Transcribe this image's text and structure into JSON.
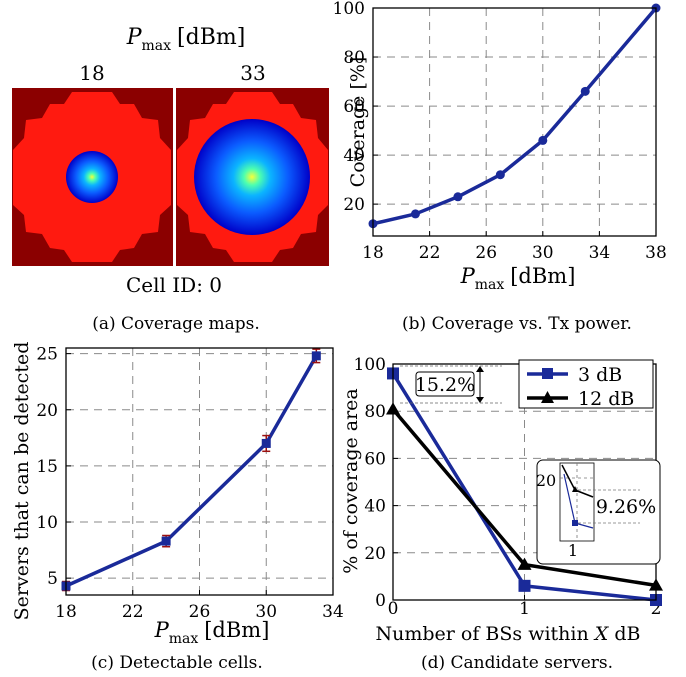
{
  "maps": {
    "header_prefix": "P",
    "header_sub": "max",
    "header_unit": "[dBm]",
    "labels": [
      "18",
      "33"
    ],
    "cell_label": "Cell ID: 0",
    "colors": {
      "background": "#8b0000",
      "cell": "#ff1a10",
      "coverage_outer": "#0000c8",
      "coverage_mid": "#0b72ff",
      "coverage_center": "#f8ff3a"
    },
    "coverage_radius_fraction": [
      0.195,
      0.455
    ]
  },
  "captions": {
    "a": "(a) Coverage maps.",
    "b": "(b) Coverage vs. Tx power.",
    "c": "(c) Detectable cells.",
    "d": "(d) Candidate servers."
  },
  "chart_data": [
    {
      "id": "b",
      "type": "line",
      "x": [
        18,
        21,
        24,
        27,
        30,
        33,
        38
      ],
      "series": [
        {
          "values": [
            12,
            16,
            23,
            32,
            46,
            66,
            100
          ],
          "color": "#1a2a99"
        }
      ],
      "xlabel_prefix": "P",
      "xlabel_sub": "max",
      "xlabel_unit": "[dBm]",
      "ylabel": "Coverage [%]",
      "xticks": [
        "18",
        "22",
        "26",
        "30",
        "34",
        "38"
      ],
      "yticks": [
        "20",
        "40",
        "60",
        "80",
        "100"
      ],
      "xlim": [
        18,
        38
      ],
      "ylim": [
        7,
        100
      ],
      "grid": true
    },
    {
      "id": "c",
      "type": "line",
      "x": [
        18,
        24,
        30,
        33
      ],
      "series": [
        {
          "values": [
            4.3,
            8.3,
            17.0,
            24.8
          ],
          "errors": [
            0.4,
            0.5,
            0.7,
            0.6
          ],
          "color": "#1a2a99",
          "error_color": "#9a1010"
        }
      ],
      "xlabel_prefix": "P",
      "xlabel_sub": "max",
      "xlabel_unit": "[dBm]",
      "ylabel": "Servers that can be detected",
      "xticks": [
        "18",
        "22",
        "26",
        "30",
        "34"
      ],
      "yticks": [
        "5",
        "10",
        "15",
        "20",
        "25"
      ],
      "xlim": [
        18,
        34
      ],
      "ylim": [
        3.5,
        25.5
      ],
      "grid": true
    },
    {
      "id": "d",
      "type": "line",
      "x": [
        0,
        1,
        2
      ],
      "series": [
        {
          "name": "3 dB",
          "values": [
            96,
            6,
            0
          ],
          "color": "#1a2a99",
          "marker": "square"
        },
        {
          "name": "12 dB",
          "values": [
            80.8,
            15,
            6.2
          ],
          "color": "#000000",
          "marker": "triangle"
        }
      ],
      "xlabel": "Number of BSs within X dB",
      "ylabel": "% of coverage area",
      "xticks": [
        "0",
        "1",
        "2"
      ],
      "yticks": [
        "0",
        "20",
        "40",
        "60",
        "80",
        "100"
      ],
      "xlim": [
        0,
        2
      ],
      "ylim": [
        0,
        100
      ],
      "grid": true,
      "legend": "top-right",
      "annotations": [
        "15.2%",
        "9.26%"
      ],
      "inset": {
        "ytick": "20",
        "xtick": "1"
      }
    }
  ]
}
